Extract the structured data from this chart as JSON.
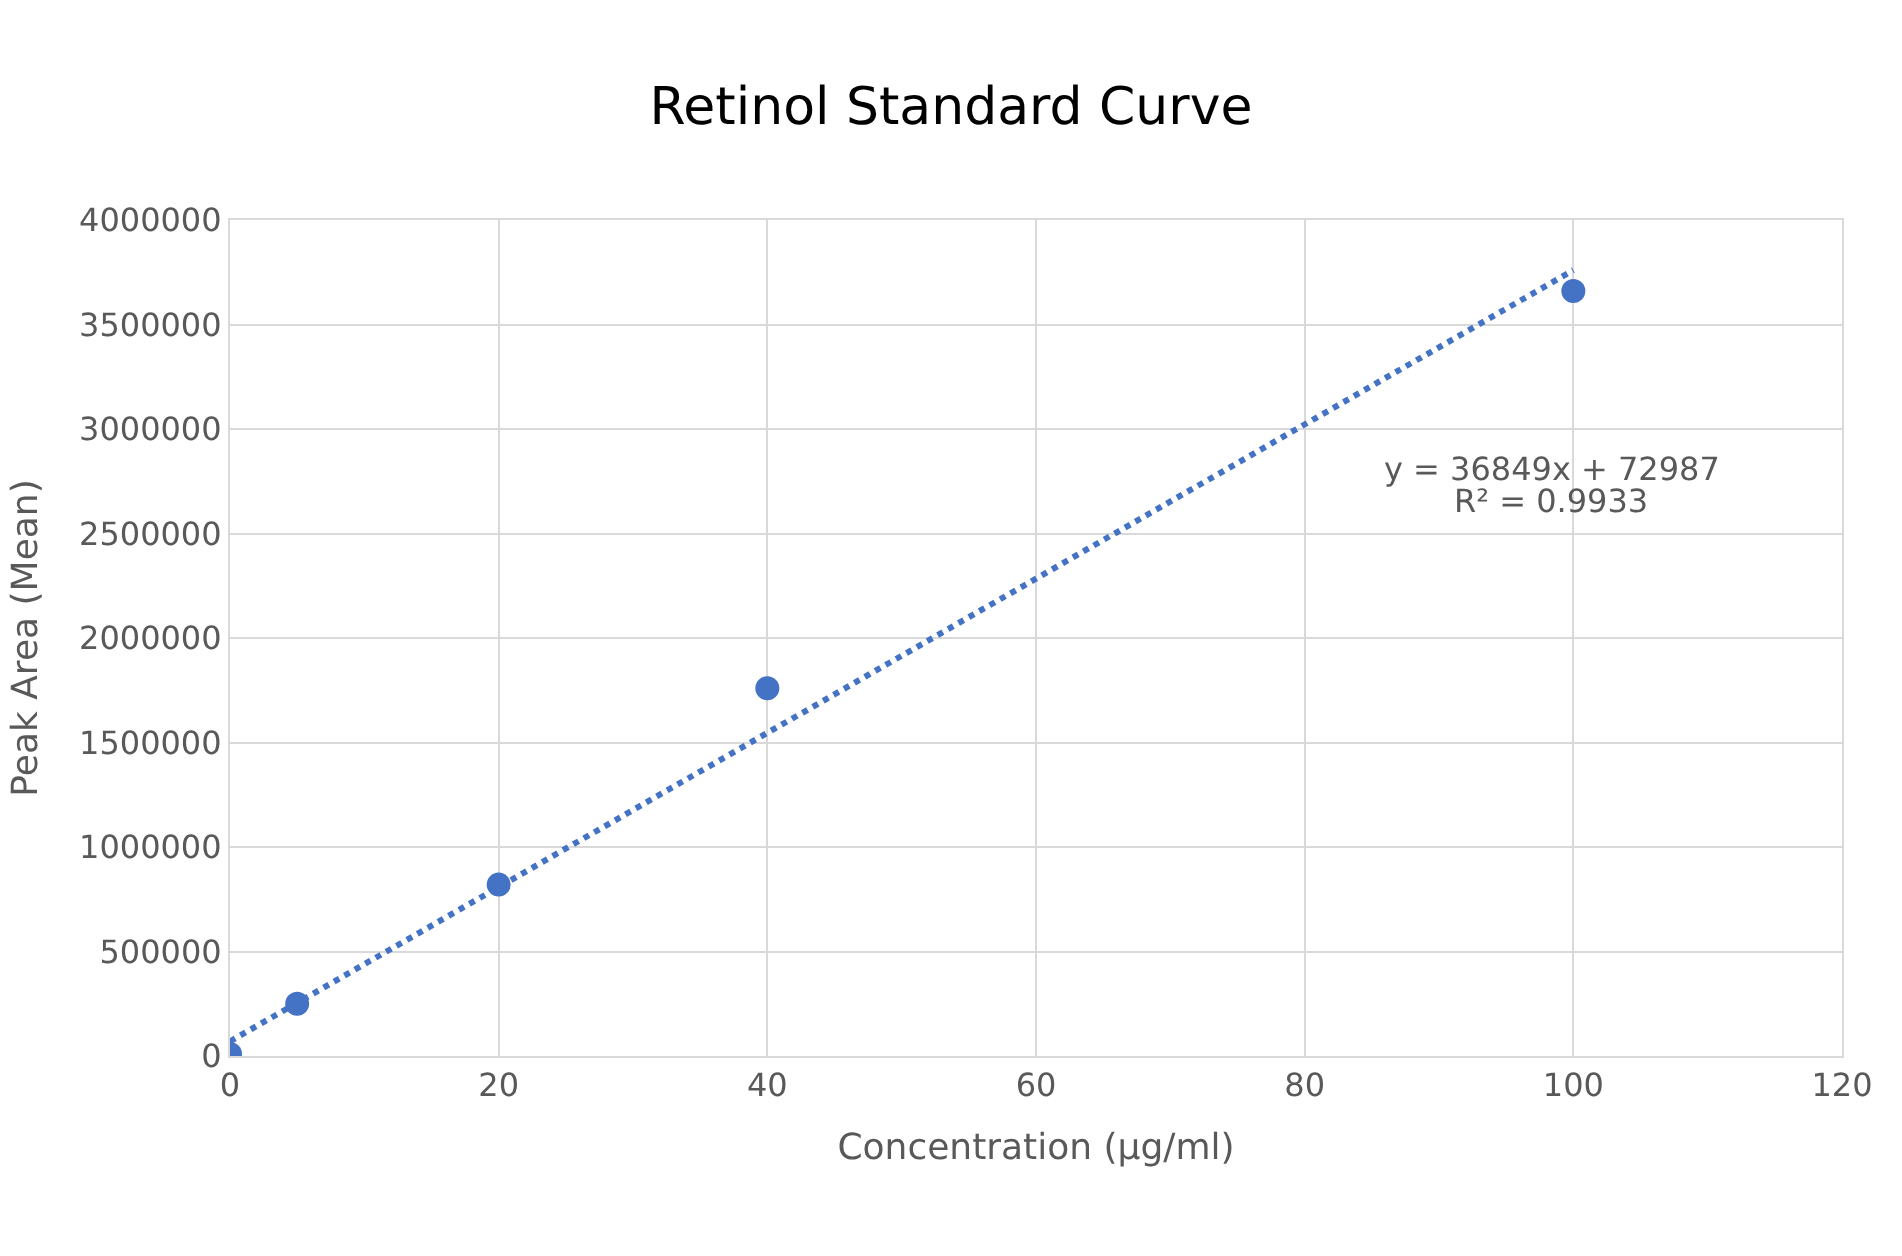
{
  "chart_data": {
    "type": "scatter",
    "title": "Retinol Standard Curve",
    "xlabel": "Concentration (µg/ml)",
    "ylabel": "Peak Area (Mean)",
    "series": [
      {
        "color": "#4472c4",
        "marker": "circle",
        "x": [
          0,
          5,
          20,
          40,
          100
        ],
        "values": [
          10000,
          250000,
          820000,
          1760000,
          3660000
        ]
      },
      {
        "type": "line",
        "color": "#4472c4",
        "line_style": "dotted",
        "marker": "none",
        "x": [
          0,
          100
        ],
        "values": [
          70000,
          3760000
        ]
      }
    ],
    "annotations": [
      "y = 36849x + 72987",
      "R² = 0.9933"
    ],
    "xlim": [
      0,
      120
    ],
    "xticks": [
      0,
      20,
      40,
      60,
      80,
      100,
      120
    ],
    "ylim": [
      0,
      4000000
    ],
    "yticks": [
      0,
      500000,
      1000000,
      1500000,
      2000000,
      2500000,
      3000000,
      3500000,
      4000000
    ],
    "grid": true
  }
}
